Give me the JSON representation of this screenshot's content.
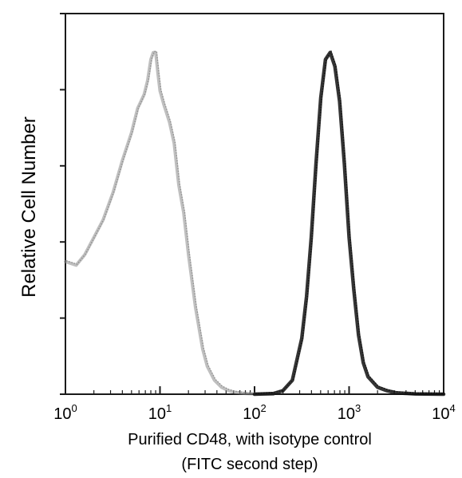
{
  "chart_data": {
    "type": "line",
    "title": "",
    "xlabel": "Purified CD48, with isotype control",
    "xlabel_line2": "(FITC second step)",
    "ylabel": "Relative Cell Number",
    "x_scale": "log",
    "xlim": [
      1,
      10000
    ],
    "ylim": [
      0,
      1
    ],
    "grid": false,
    "legend": "none",
    "x_ticks": [
      {
        "base": "10",
        "exp": "0"
      },
      {
        "base": "10",
        "exp": "1"
      },
      {
        "base": "10",
        "exp": "2"
      },
      {
        "base": "10",
        "exp": "3"
      },
      {
        "base": "10",
        "exp": "4"
      }
    ],
    "series": [
      {
        "style": "light-gray",
        "color": "#8a8a8a",
        "x": [
          1.0,
          1.3,
          1.6,
          2.0,
          2.5,
          3.2,
          4.0,
          5.0,
          5.8,
          6.3,
          6.8,
          7.4,
          8.0,
          8.5,
          9.0,
          9.5,
          10.0,
          11.0,
          12.6,
          14.1,
          15.8,
          17.8,
          20.0,
          23.7,
          28.2,
          31.6,
          37.6,
          44.7,
          53.1,
          63.1,
          79.4,
          100.0,
          125.9,
          158.5
        ],
        "y": [
          0.38,
          0.37,
          0.4,
          0.45,
          0.5,
          0.58,
          0.67,
          0.75,
          0.82,
          0.84,
          0.86,
          0.9,
          0.96,
          0.98,
          0.98,
          0.92,
          0.87,
          0.83,
          0.78,
          0.72,
          0.6,
          0.52,
          0.4,
          0.25,
          0.13,
          0.08,
          0.04,
          0.02,
          0.01,
          0.005,
          0.002,
          0.001,
          0.0,
          0.0
        ]
      },
      {
        "style": "dark",
        "color": "#111111",
        "x": [
          100.0,
          158.5,
          199.5,
          251.2,
          316.2,
          354.8,
          398.1,
          446.7,
          501.2,
          562.3,
          631.0,
          707.9,
          794.3,
          891.3,
          1000.0,
          1122.0,
          1258.9,
          1412.5,
          1584.9,
          1995.3,
          2511.9,
          3162.3,
          5011.9,
          10000.0
        ],
        "y": [
          0.0,
          0.002,
          0.01,
          0.04,
          0.16,
          0.28,
          0.45,
          0.66,
          0.85,
          0.96,
          0.98,
          0.94,
          0.84,
          0.66,
          0.45,
          0.3,
          0.17,
          0.09,
          0.05,
          0.02,
          0.01,
          0.004,
          0.001,
          0.0
        ]
      }
    ]
  }
}
